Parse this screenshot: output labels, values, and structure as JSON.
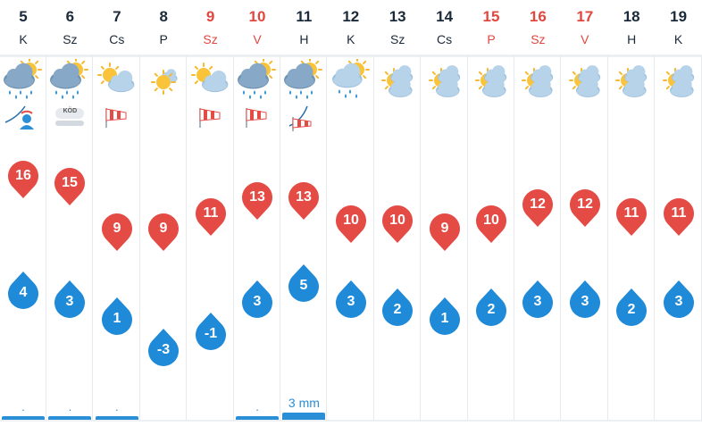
{
  "days": [
    {
      "num": "5",
      "abbr": "K",
      "weekend": false,
      "icon": "heavy-rain-cloud-sun-icon",
      "extra": "wind-person-icon",
      "max": "16",
      "min": "4",
      "max_level": 0.95,
      "min_level": 0.4,
      "precip": ".",
      "rain_level": 1
    },
    {
      "num": "6",
      "abbr": "Sz",
      "weekend": false,
      "icon": "heavy-rain-cloud-sun-icon",
      "extra": "fog-icon",
      "extra_text": "KÖD",
      "max": "15",
      "min": "3",
      "max_level": 0.9,
      "min_level": 0.34,
      "precip": ".",
      "rain_level": 1
    },
    {
      "num": "7",
      "abbr": "Cs",
      "weekend": false,
      "icon": "partly-cloudy-icon",
      "extra": "windsock-icon",
      "max": "9",
      "min": "1",
      "max_level": 0.58,
      "min_level": 0.22,
      "precip": ".",
      "rain_level": 1
    },
    {
      "num": "8",
      "abbr": "P",
      "weekend": false,
      "icon": "sunny-cloud-icon",
      "extra": "",
      "max": "9",
      "min": "-3",
      "max_level": 0.58,
      "min_level": 0.0,
      "precip": "",
      "rain_level": 0
    },
    {
      "num": "9",
      "abbr": "Sz",
      "weekend": true,
      "icon": "partly-cloudy-icon",
      "extra": "windsock-icon",
      "max": "11",
      "min": "-1",
      "max_level": 0.69,
      "min_level": 0.11,
      "precip": "",
      "rain_level": 0
    },
    {
      "num": "10",
      "abbr": "V",
      "weekend": true,
      "icon": "heavy-rain-cloud-sun-icon",
      "extra": "windsock-icon",
      "max": "13",
      "min": "3",
      "max_level": 0.8,
      "min_level": 0.34,
      "precip": ".",
      "rain_level": 1
    },
    {
      "num": "11",
      "abbr": "H",
      "weekend": false,
      "icon": "heavy-rain-cloud-sun-icon",
      "extra": "wind-windsock-icon",
      "max": "13",
      "min": "5",
      "max_level": 0.8,
      "min_level": 0.45,
      "precip": "3 mm",
      "rain_level": 2
    },
    {
      "num": "12",
      "abbr": "K",
      "weekend": false,
      "icon": "rain-cloud-sun-icon",
      "extra": "",
      "max": "10",
      "min": "3",
      "max_level": 0.64,
      "min_level": 0.34,
      "precip": "",
      "rain_level": 0
    },
    {
      "num": "13",
      "abbr": "Sz",
      "weekend": false,
      "icon": "cloudy-sun-icon",
      "extra": "",
      "max": "10",
      "min": "2",
      "max_level": 0.64,
      "min_level": 0.28,
      "precip": "",
      "rain_level": 0
    },
    {
      "num": "14",
      "abbr": "Cs",
      "weekend": false,
      "icon": "cloudy-sun-icon",
      "extra": "",
      "max": "9",
      "min": "1",
      "max_level": 0.58,
      "min_level": 0.22,
      "precip": "",
      "rain_level": 0
    },
    {
      "num": "15",
      "abbr": "P",
      "weekend": true,
      "icon": "cloudy-sun-icon",
      "extra": "",
      "max": "10",
      "min": "2",
      "max_level": 0.64,
      "min_level": 0.28,
      "precip": "",
      "rain_level": 0
    },
    {
      "num": "16",
      "abbr": "Sz",
      "weekend": true,
      "icon": "cloudy-sun-icon",
      "extra": "",
      "max": "12",
      "min": "3",
      "max_level": 0.75,
      "min_level": 0.34,
      "precip": "",
      "rain_level": 0
    },
    {
      "num": "17",
      "abbr": "V",
      "weekend": true,
      "icon": "cloudy-sun-icon",
      "extra": "",
      "max": "12",
      "min": "3",
      "max_level": 0.75,
      "min_level": 0.34,
      "precip": "",
      "rain_level": 0
    },
    {
      "num": "18",
      "abbr": "H",
      "weekend": false,
      "icon": "cloudy-sun-icon",
      "extra": "",
      "max": "11",
      "min": "2",
      "max_level": 0.69,
      "min_level": 0.28,
      "precip": "",
      "rain_level": 0
    },
    {
      "num": "19",
      "abbr": "K",
      "weekend": false,
      "icon": "cloudy-sun-icon",
      "extra": "",
      "max": "11",
      "min": "3",
      "max_level": 0.69,
      "min_level": 0.34,
      "precip": "",
      "rain_level": 0
    }
  ],
  "colors": {
    "max_marker": "#e54b45",
    "min_marker": "#1f8ad8",
    "weekend_text": "#e0473e",
    "precip": "#2a8fd6"
  }
}
